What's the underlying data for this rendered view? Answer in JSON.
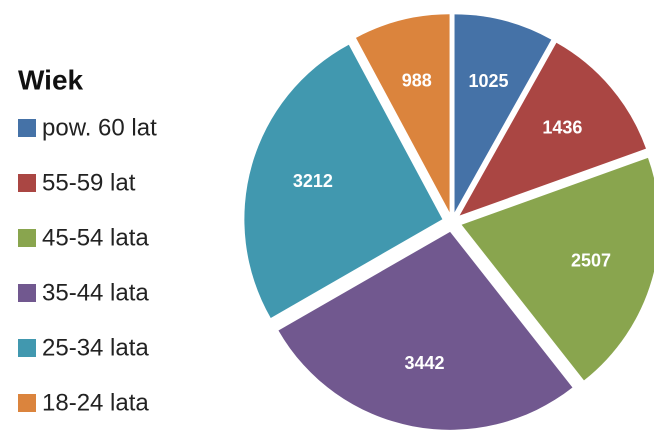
{
  "chart_data": {
    "type": "pie",
    "legend_title": "Wiek",
    "categories": [
      "pow. 60 lat",
      "55-59 lat",
      "45-54 lata",
      "35-44 lata",
      "25-34 lata",
      "18-24 lata"
    ],
    "values": [
      1025,
      1436,
      2507,
      3442,
      3212,
      988
    ],
    "colors": [
      "#4572a7",
      "#aa4643",
      "#89a54e",
      "#71588f",
      "#4198af",
      "#db843d"
    ],
    "legend": "left",
    "exploded": true
  }
}
